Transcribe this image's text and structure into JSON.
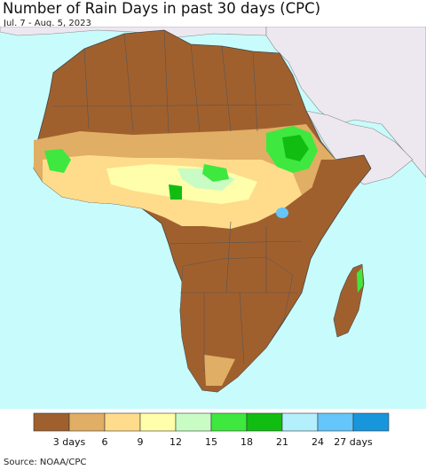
{
  "title": "Number of Rain Days in past 30 days (CPC)",
  "subtitle": "Jul. 7 - Aug. 5, 2023",
  "source": "Source: NOAA/CPC",
  "legend": {
    "bins": [
      {
        "color": "#a0602e"
      },
      {
        "color": "#e0ae64"
      },
      {
        "color": "#fedc8c"
      },
      {
        "color": "#fffeaa"
      },
      {
        "color": "#c9fcc4"
      },
      {
        "color": "#3ee83e"
      },
      {
        "color": "#12bd12"
      },
      {
        "color": "#b4effc"
      },
      {
        "color": "#64c6fa"
      },
      {
        "color": "#1896dc"
      }
    ],
    "labels": [
      "3 days",
      "6",
      "9",
      "12",
      "15",
      "18",
      "21",
      "24",
      "27 days"
    ]
  },
  "colors": {
    "ocean": "#c8fcfc",
    "non_african_land": "#ede8f0",
    "border": "#555555"
  }
}
